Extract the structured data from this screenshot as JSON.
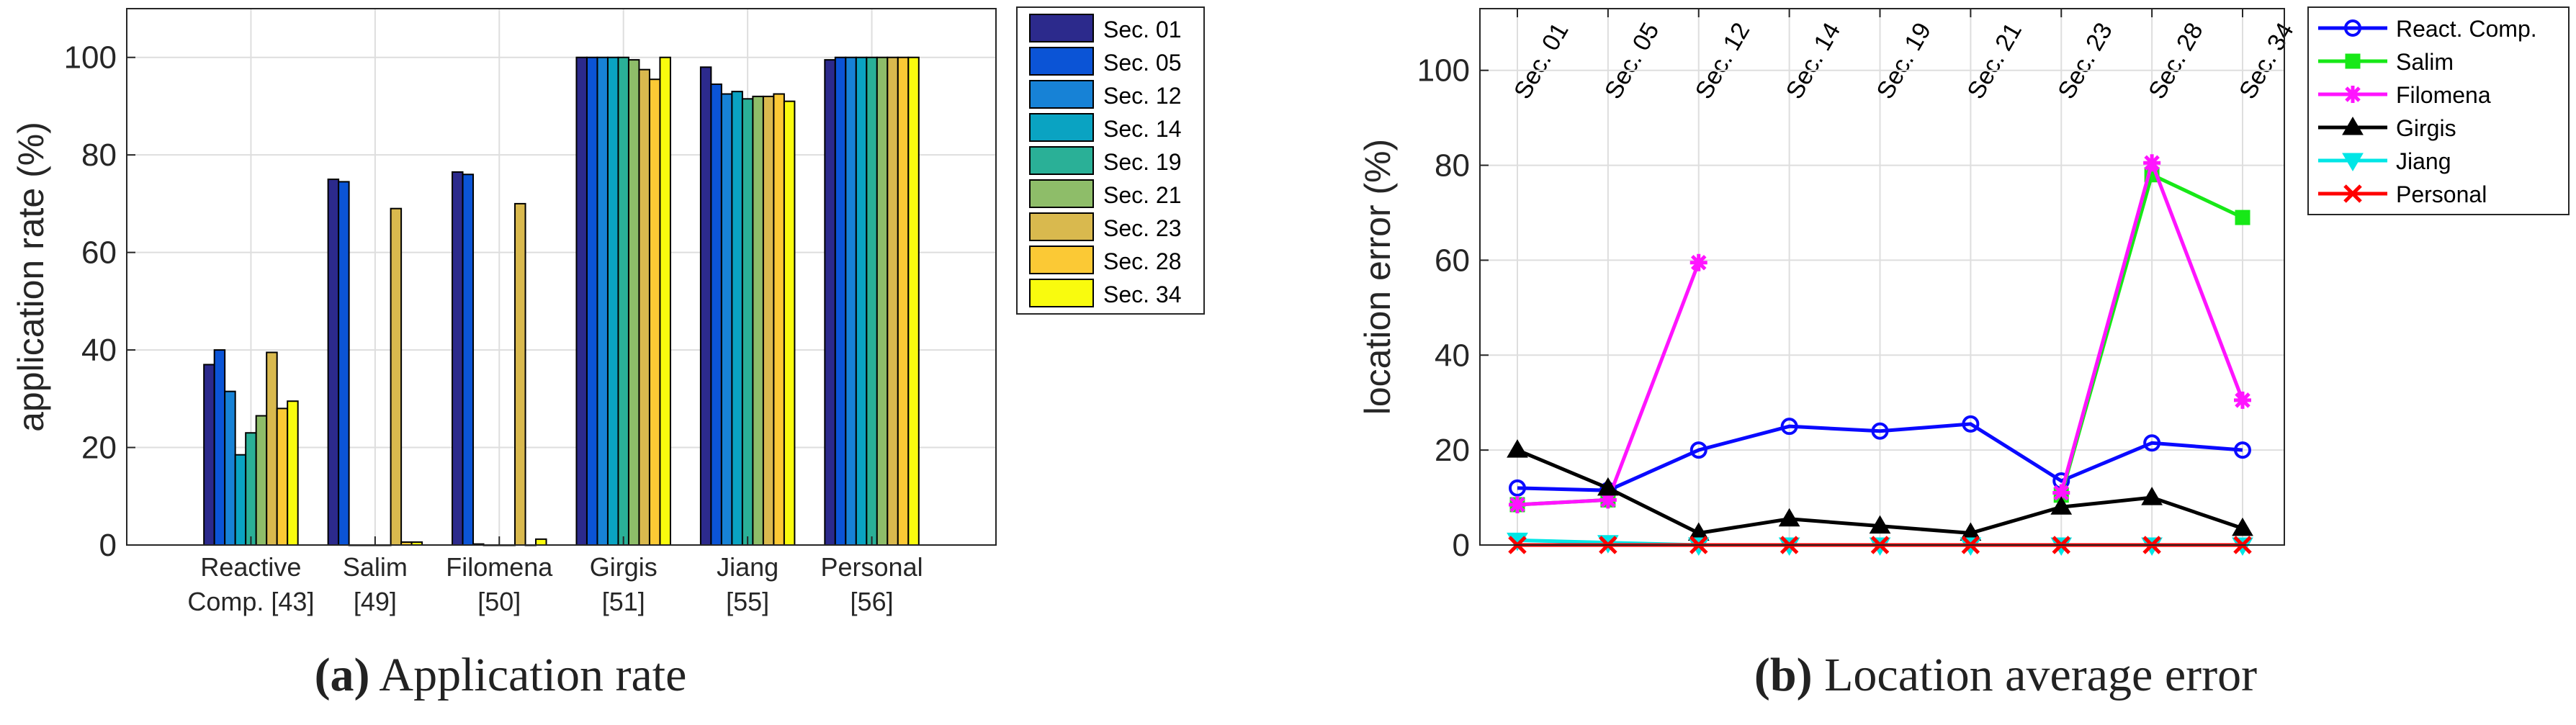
{
  "captions": {
    "a": {
      "tag": "(a)",
      "text": "Application rate"
    },
    "b": {
      "tag": "(b)",
      "text": "Location average error"
    }
  },
  "chart_data": [
    {
      "type": "bar",
      "xlabel": "",
      "ylabel": "application rate (%)",
      "ylim": [
        0,
        110
      ],
      "yticks": [
        0,
        20,
        40,
        60,
        80,
        100
      ],
      "grid": true,
      "legend_position": "outside-right",
      "categories": [
        [
          "Reactive",
          "Comp. [43]"
        ],
        [
          "Salim",
          "[49]"
        ],
        [
          "Filomena",
          "[50]"
        ],
        [
          "Girgis",
          "[51]"
        ],
        [
          "Jiang",
          "[55]"
        ],
        [
          "Personal",
          "[56]"
        ]
      ],
      "series": [
        {
          "name": "Sec. 01",
          "color": "#2c2a8c",
          "values": [
            37,
            75,
            76.5,
            100,
            98,
            99.5
          ]
        },
        {
          "name": "Sec. 05",
          "color": "#0b54d6",
          "values": [
            40,
            74.5,
            76,
            100,
            94.5,
            100
          ]
        },
        {
          "name": "Sec. 12",
          "color": "#1782d6",
          "values": [
            31.5,
            0,
            0.2,
            100,
            92.5,
            100
          ]
        },
        {
          "name": "Sec. 14",
          "color": "#0aa3c2",
          "values": [
            18.5,
            0,
            0,
            100,
            93,
            100
          ]
        },
        {
          "name": "Sec. 19",
          "color": "#2ab097",
          "values": [
            23,
            0,
            0,
            100,
            91.5,
            100
          ]
        },
        {
          "name": "Sec. 21",
          "color": "#8ebd69",
          "values": [
            26.5,
            0,
            0,
            99.5,
            92,
            100
          ]
        },
        {
          "name": "Sec. 23",
          "color": "#d9b94e",
          "values": [
            39.5,
            69,
            70,
            97.5,
            92,
            100
          ]
        },
        {
          "name": "Sec. 28",
          "color": "#fbc935",
          "values": [
            28,
            0.6,
            0,
            95.5,
            92.5,
            100
          ]
        },
        {
          "name": "Sec. 34",
          "color": "#f9fb0e",
          "values": [
            29.5,
            0.6,
            1.2,
            100,
            91,
            100
          ]
        }
      ]
    },
    {
      "type": "line",
      "xlabel": "",
      "ylabel": "location error (%)",
      "ylim": [
        0,
        113
      ],
      "yticks": [
        0,
        20,
        40,
        60,
        80,
        100
      ],
      "grid": true,
      "legend_position": "outside-right",
      "x": [
        "Sec. 01",
        "Sec. 05",
        "Sec. 12",
        "Sec. 14",
        "Sec. 19",
        "Sec. 21",
        "Sec. 23",
        "Sec. 28",
        "Sec. 34"
      ],
      "series": [
        {
          "name": "React. Comp.",
          "color": "#0a0aff",
          "marker": "circle",
          "values": [
            12,
            11.5,
            20,
            25,
            24,
            25.5,
            13.5,
            21.5,
            20
          ]
        },
        {
          "name": "Salim",
          "color": "#17e817",
          "marker": "square",
          "values": [
            8.5,
            9.5,
            null,
            null,
            null,
            null,
            10.5,
            78,
            69
          ]
        },
        {
          "name": "Filomena",
          "color": "#ff14ff",
          "marker": "star",
          "values": [
            8.5,
            9.5,
            59.5,
            null,
            null,
            null,
            11,
            80.5,
            30.5
          ]
        },
        {
          "name": "Girgis",
          "color": "#000000",
          "marker": "triangle-up",
          "values": [
            20,
            12,
            2.5,
            5.5,
            4,
            2.5,
            8,
            10,
            3.5
          ]
        },
        {
          "name": "Jiang",
          "color": "#00e6e6",
          "marker": "triangle-down",
          "values": [
            1,
            0.5,
            0,
            0,
            0,
            0,
            0,
            0,
            0
          ]
        },
        {
          "name": "Personal",
          "color": "#ff0000",
          "marker": "x",
          "values": [
            0,
            0,
            0,
            0,
            0,
            0,
            0,
            0,
            0
          ]
        }
      ]
    }
  ]
}
